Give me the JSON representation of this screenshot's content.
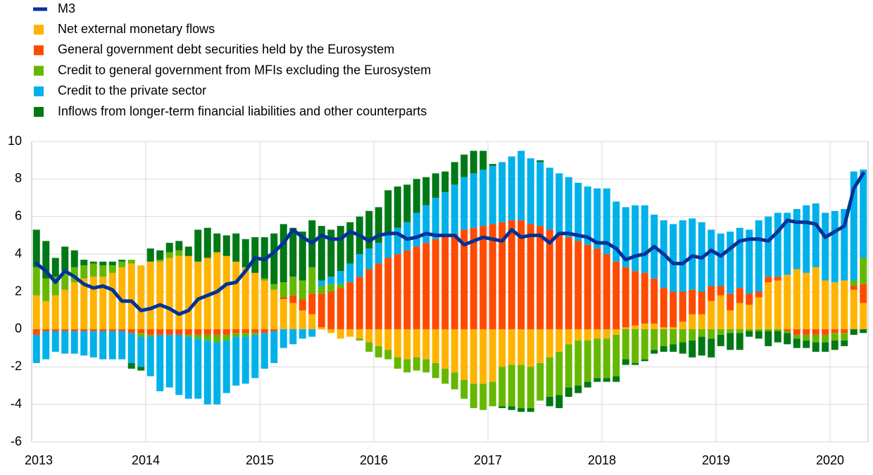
{
  "chart_data": {
    "type": "bar",
    "stacked": true,
    "grid": true,
    "legend": "top-left",
    "categories": [
      "2013",
      null,
      null,
      null,
      null,
      null,
      null,
      null,
      null,
      null,
      null,
      null,
      "2014",
      null,
      null,
      null,
      null,
      null,
      null,
      null,
      null,
      null,
      null,
      null,
      "2015",
      null,
      null,
      null,
      null,
      null,
      null,
      null,
      null,
      null,
      null,
      null,
      "2016",
      null,
      null,
      null,
      null,
      null,
      null,
      null,
      null,
      null,
      null,
      null,
      "2017",
      null,
      null,
      null,
      null,
      null,
      null,
      null,
      null,
      null,
      null,
      null,
      "2018",
      null,
      null,
      null,
      null,
      null,
      null,
      null,
      null,
      null,
      null,
      null,
      "2019",
      null,
      null,
      null,
      null,
      null,
      null,
      null,
      null,
      null,
      null,
      null,
      "2020",
      null,
      null,
      null
    ],
    "ylim": [
      -6,
      10
    ],
    "yticks": [
      -6,
      -4,
      -2,
      0,
      2,
      4,
      6,
      8,
      10
    ],
    "series": [
      {
        "name": "M3",
        "type": "line",
        "color": "#003299",
        "values": [
          3.5,
          3.1,
          2.5,
          3.1,
          2.8,
          2.4,
          2.2,
          2.3,
          2.1,
          1.5,
          1.5,
          1.0,
          1.1,
          1.3,
          1.1,
          0.8,
          1.0,
          1.6,
          1.8,
          2.0,
          2.4,
          2.5,
          3.1,
          3.8,
          3.7,
          4.1,
          4.6,
          5.3,
          4.9,
          4.6,
          5.0,
          4.8,
          4.8,
          5.2,
          5.0,
          4.7,
          5.0,
          5.1,
          5.1,
          4.8,
          4.9,
          5.1,
          5.0,
          5.0,
          5.0,
          4.5,
          4.7,
          4.9,
          4.8,
          4.7,
          5.3,
          4.9,
          5.0,
          5.0,
          4.6,
          5.1,
          5.1,
          5.0,
          4.9,
          4.6,
          4.6,
          4.3,
          3.7,
          3.9,
          4.0,
          4.4,
          4.0,
          3.5,
          3.5,
          3.9,
          3.8,
          4.2,
          3.9,
          4.3,
          4.7,
          4.8,
          4.8,
          4.7,
          5.2,
          5.8,
          5.7,
          5.7,
          5.6,
          4.9,
          5.2,
          5.5,
          7.5,
          8.3
        ]
      },
      {
        "name": "Net external monetary flows",
        "type": "bar",
        "color": "#ffb400",
        "values": [
          1.8,
          1.5,
          1.8,
          2.1,
          2.5,
          2.7,
          2.8,
          2.8,
          3.0,
          3.3,
          3.5,
          3.4,
          3.6,
          3.6,
          3.8,
          3.9,
          3.9,
          3.6,
          3.8,
          4.1,
          3.9,
          3.6,
          3.3,
          3.0,
          2.6,
          2.1,
          1.6,
          1.4,
          1.0,
          0.8,
          0.1,
          -0.2,
          -0.5,
          -0.4,
          -0.5,
          -0.7,
          -0.9,
          -1.1,
          -1.5,
          -1.6,
          -1.5,
          -1.6,
          -1.8,
          -2.1,
          -2.3,
          -2.7,
          -2.9,
          -2.9,
          -2.8,
          -2.0,
          -1.9,
          -1.9,
          -2.0,
          -1.8,
          -1.5,
          -1.2,
          -0.8,
          -0.6,
          -0.6,
          -0.5,
          -0.5,
          -0.3,
          0.1,
          0.2,
          0.3,
          0.3,
          0.1,
          0.1,
          0.4,
          0.8,
          0.8,
          1.5,
          1.8,
          1.0,
          1.4,
          1.3,
          1.7,
          2.5,
          2.6,
          2.9,
          3.2,
          3.0,
          3.3,
          2.6,
          2.5,
          2.6,
          2.1,
          1.4
        ]
      },
      {
        "name": "General government debt securities held by the Eurosystem",
        "type": "bar",
        "color": "#ff4b00",
        "values": [
          -0.3,
          -0.1,
          -0.1,
          -0.1,
          -0.1,
          -0.1,
          -0.1,
          -0.1,
          -0.1,
          -0.1,
          -0.2,
          -0.2,
          -0.3,
          -0.3,
          -0.3,
          -0.3,
          -0.3,
          -0.3,
          -0.3,
          -0.3,
          -0.3,
          -0.2,
          -0.2,
          -0.2,
          -0.2,
          -0.1,
          0.1,
          0.4,
          0.6,
          1.1,
          1.8,
          2.0,
          2.2,
          2.5,
          2.8,
          3.2,
          3.5,
          3.8,
          4.0,
          4.2,
          4.4,
          4.6,
          4.8,
          5.0,
          5.1,
          5.3,
          5.4,
          5.5,
          5.6,
          5.7,
          5.8,
          5.8,
          5.6,
          5.5,
          5.3,
          5.1,
          4.9,
          4.7,
          4.5,
          4.3,
          4.0,
          3.6,
          3.2,
          2.9,
          2.7,
          2.4,
          2.1,
          1.9,
          1.6,
          1.3,
          1.2,
          0.8,
          0.5,
          0.9,
          0.8,
          0.6,
          0.3,
          0.3,
          0.2,
          -0.1,
          -0.3,
          -0.3,
          -0.3,
          -0.3,
          -0.2,
          -0.2,
          0.2,
          1.0
        ]
      },
      {
        "name": "Credit to general government from MFIs excluding the Eurosystem",
        "type": "bar",
        "color": "#65b800",
        "values": [
          1.5,
          1.2,
          1.0,
          1.0,
          0.8,
          0.7,
          0.7,
          0.6,
          0.4,
          0.3,
          0.2,
          -0.2,
          -0.1,
          0.1,
          0.3,
          0.3,
          -0.1,
          -0.2,
          -0.3,
          -0.4,
          -0.3,
          -0.2,
          -0.2,
          -0.1,
          0.1,
          0.3,
          0.8,
          1.0,
          1.0,
          1.4,
          0.4,
          0.4,
          0.2,
          0.0,
          -0.1,
          -0.5,
          -0.6,
          -0.5,
          -0.6,
          -0.7,
          -0.7,
          -0.7,
          -0.8,
          -0.8,
          -0.9,
          -1.0,
          -1.3,
          -1.4,
          -1.3,
          -2.1,
          -2.2,
          -2.3,
          -2.2,
          -2.0,
          -2.1,
          -2.3,
          -2.3,
          -2.4,
          -2.2,
          -2.1,
          -2.1,
          -2.2,
          -1.6,
          -1.8,
          -1.6,
          -1.1,
          -0.9,
          -0.8,
          -0.7,
          -0.6,
          -0.4,
          -0.5,
          -0.3,
          -0.2,
          -0.2,
          -0.1,
          -0.1,
          -0.1,
          -0.1,
          -0.1,
          -0.2,
          -0.3,
          -0.4,
          -0.4,
          -0.4,
          -0.4,
          0.3,
          1.4
        ]
      },
      {
        "name": "Credit to the private sector",
        "type": "bar",
        "color": "#00b1ea",
        "values": [
          -1.5,
          -1.5,
          -1.1,
          -1.2,
          -1.2,
          -1.3,
          -1.4,
          -1.5,
          -1.5,
          -1.5,
          -1.6,
          -1.6,
          -2.1,
          -3.0,
          -2.8,
          -3.2,
          -3.3,
          -3.2,
          -3.4,
          -3.3,
          -2.8,
          -2.6,
          -2.5,
          -2.3,
          -1.9,
          -1.7,
          -1.0,
          -0.8,
          -0.5,
          -0.4,
          0.3,
          0.4,
          0.7,
          1.0,
          1.2,
          1.1,
          1.1,
          1.2,
          1.4,
          1.5,
          1.8,
          2.0,
          2.2,
          2.3,
          2.6,
          2.8,
          2.9,
          3.0,
          3.1,
          3.2,
          3.4,
          3.7,
          3.5,
          3.4,
          3.3,
          3.2,
          3.2,
          3.1,
          3.1,
          3.2,
          3.5,
          3.2,
          3.2,
          3.5,
          3.6,
          3.4,
          3.6,
          3.6,
          3.8,
          3.8,
          3.7,
          3.0,
          2.8,
          3.3,
          3.2,
          3.4,
          3.8,
          3.2,
          3.4,
          3.3,
          3.2,
          3.6,
          3.4,
          3.6,
          3.8,
          3.8,
          5.8,
          4.7
        ]
      },
      {
        "name": "Inflows from longer-term financial liabilities and other counterparts",
        "type": "bar",
        "color": "#007816",
        "values": [
          2.0,
          2.0,
          1.0,
          1.3,
          0.9,
          0.3,
          0.1,
          0.2,
          0.2,
          0.1,
          -0.3,
          -0.2,
          0.7,
          0.5,
          0.5,
          0.5,
          0.5,
          1.7,
          1.6,
          1.0,
          1.1,
          1.5,
          1.5,
          1.9,
          2.2,
          2.7,
          3.1,
          2.6,
          2.6,
          2.5,
          2.9,
          2.5,
          2.4,
          2.2,
          2.0,
          2.0,
          1.9,
          2.4,
          2.2,
          2.0,
          1.8,
          1.5,
          1.3,
          1.1,
          1.2,
          1.2,
          1.2,
          1.0,
          0.1,
          -0.1,
          -0.2,
          -0.2,
          -0.2,
          0.1,
          -0.5,
          -0.7,
          -0.5,
          -0.4,
          -0.3,
          -0.2,
          -0.2,
          -0.3,
          -0.3,
          -0.1,
          -0.1,
          -0.2,
          -0.3,
          -0.4,
          -0.6,
          -0.9,
          -1.0,
          -1.0,
          -0.6,
          -0.9,
          -0.9,
          -0.3,
          -0.4,
          -0.8,
          -0.6,
          -0.6,
          -0.5,
          -0.4,
          -0.5,
          -0.5,
          -0.5,
          -0.3,
          -0.3,
          -0.2
        ]
      }
    ]
  }
}
